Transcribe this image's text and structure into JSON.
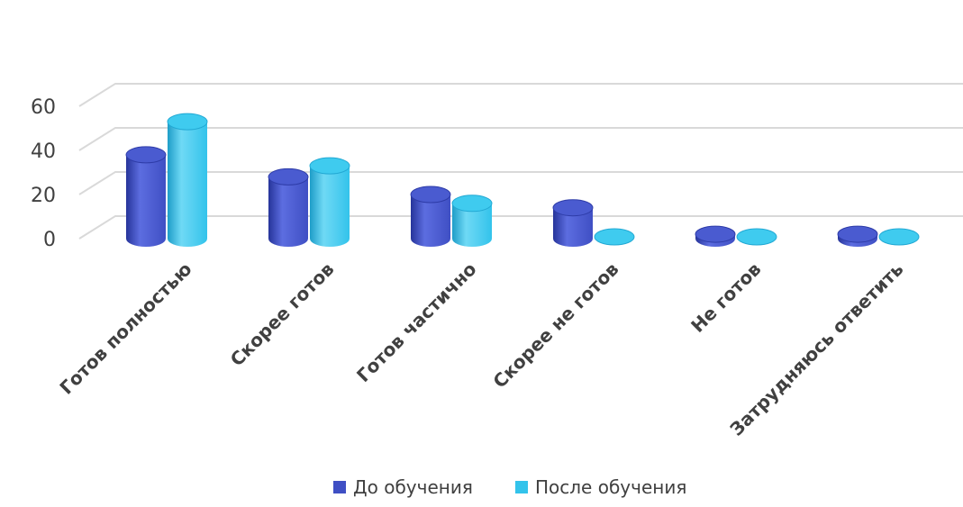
{
  "chart_data": {
    "type": "bar",
    "categories": [
      "Готов полностью",
      "Скорее готов",
      "Готов частично",
      "Скорее не готов",
      "Не готов",
      "Затрудняюсь ответить"
    ],
    "series": [
      {
        "name": "До обучения",
        "values": [
          38,
          28,
          20,
          14,
          2,
          2
        ],
        "color": "#3F4FC4"
      },
      {
        "name": "После обучения",
        "values": [
          53,
          33,
          16,
          0,
          0,
          0
        ],
        "color": "#33C3EB"
      }
    ],
    "yticks": [
      0,
      20,
      40,
      60
    ],
    "ylim": [
      0,
      60
    ],
    "grid": true,
    "legend_position": "bottom",
    "style": "3d-cylinder"
  }
}
